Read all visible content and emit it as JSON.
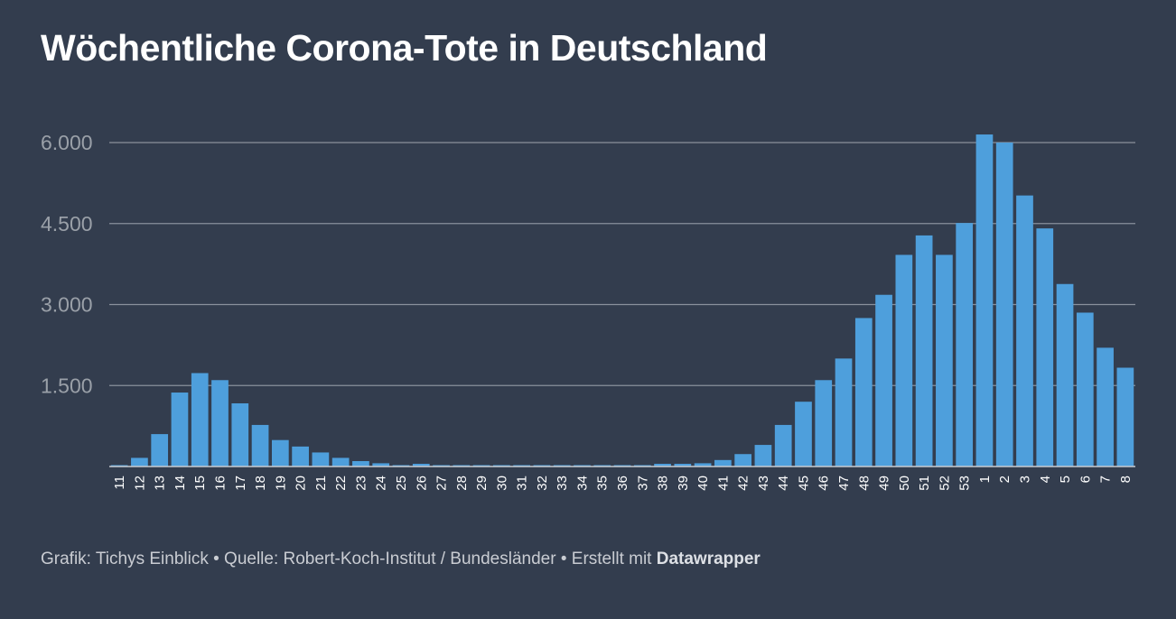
{
  "title": "Wöchentliche Corona-Tote in Deutschland",
  "footer": {
    "text": "Grafik: Tichys Einblick • Quelle: Robert-Koch-Institut / Bundesländer • Erstellt mit ",
    "brand": "Datawrapper"
  },
  "colors": {
    "background": "#333d4e",
    "bar": "#4e9fdc",
    "grid": "#8a919c",
    "axis_label": "#9aa0a8",
    "tick_label": "#ffffff"
  },
  "chart_data": {
    "type": "bar",
    "title": "Wöchentliche Corona-Tote in Deutschland",
    "xlabel": "",
    "ylabel": "",
    "ylim": [
      0,
      6600
    ],
    "yticks": [
      1500,
      3000,
      4500,
      6000
    ],
    "ytick_labels": [
      "1.500",
      "3.000",
      "4.500",
      "6.000"
    ],
    "grid": true,
    "categories": [
      "11",
      "12",
      "13",
      "14",
      "15",
      "16",
      "17",
      "18",
      "19",
      "20",
      "21",
      "22",
      "23",
      "24",
      "25",
      "26",
      "27",
      "28",
      "29",
      "30",
      "31",
      "32",
      "33",
      "34",
      "35",
      "36",
      "37",
      "38",
      "39",
      "40",
      "41",
      "42",
      "43",
      "44",
      "45",
      "46",
      "47",
      "48",
      "49",
      "50",
      "51",
      "52",
      "53",
      "1",
      "2",
      "3",
      "4",
      "5",
      "6",
      "7",
      "8"
    ],
    "values": [
      20,
      160,
      600,
      1370,
      1730,
      1600,
      1170,
      770,
      490,
      370,
      260,
      160,
      100,
      60,
      20,
      50,
      20,
      15,
      15,
      15,
      15,
      15,
      15,
      15,
      15,
      15,
      15,
      50,
      50,
      60,
      120,
      230,
      400,
      770,
      1200,
      1600,
      2000,
      2750,
      3180,
      3920,
      4280,
      3920,
      4510,
      6150,
      6000,
      5020,
      4410,
      3380,
      2850,
      2200,
      1830
    ]
  }
}
